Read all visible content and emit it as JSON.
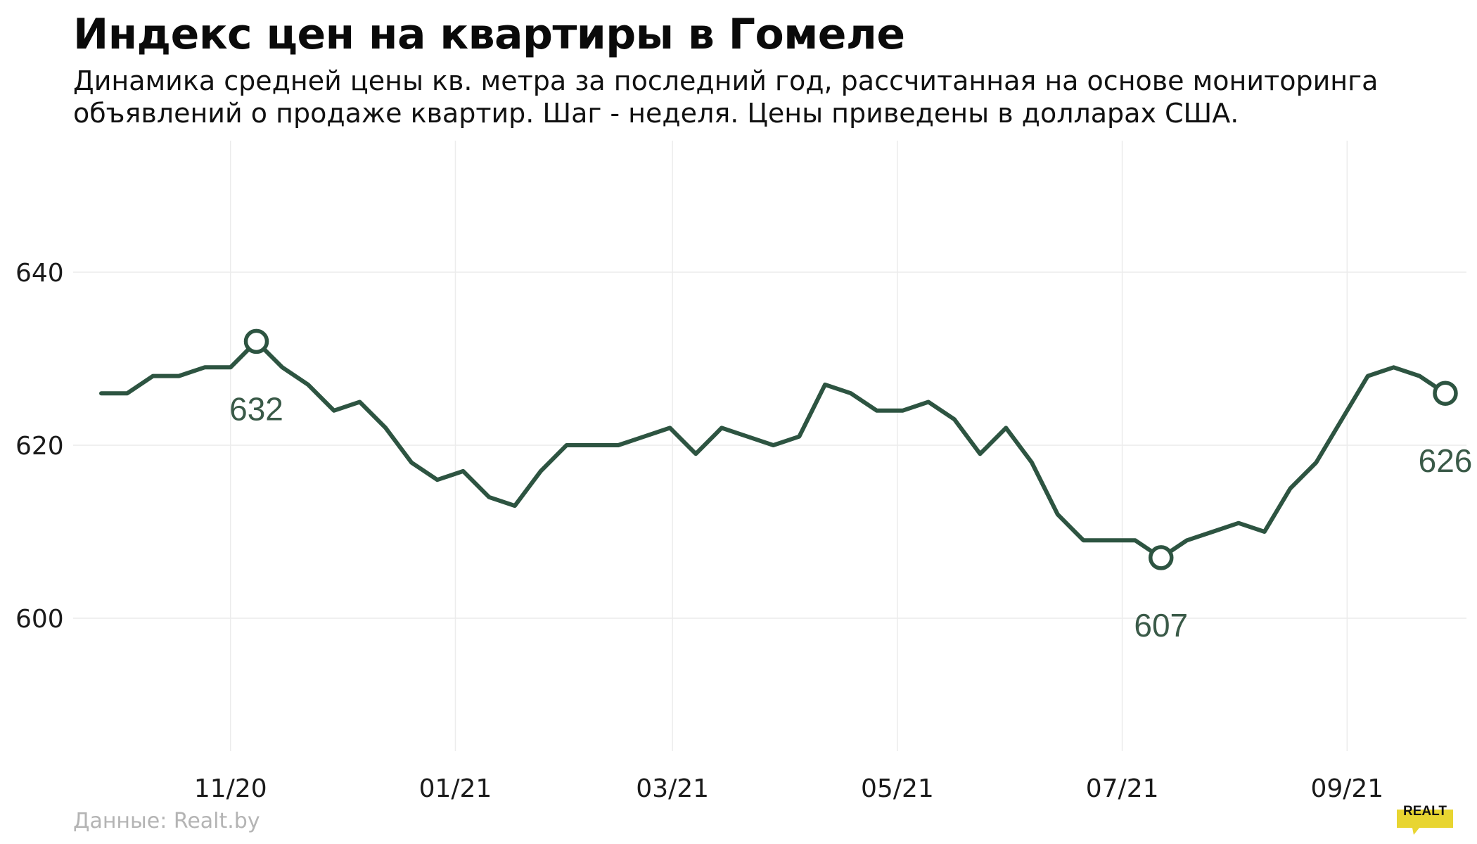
{
  "title": "Индекс цен на квартиры в Гомеле",
  "subtitle": {
    "line1": "Динамика средней цены кв. метра за последний год, рассчитанная на основе мониторинга",
    "line2": "объявлений о продаже квартир. Шаг - неделя. Цены приведены в долларах США."
  },
  "source": "Данные: Realt.by",
  "logo_text": "REALT",
  "colors": {
    "line": "#2d5441",
    "label": "#3a5a48",
    "grid": "#ececec",
    "axis_text": "#1a1a1a",
    "logo": "#e8d531"
  },
  "chart_data": {
    "type": "line",
    "title": "Индекс цен на квартиры в Гомеле",
    "xlabel": "",
    "ylabel": "",
    "ylim": [
      585,
      655
    ],
    "yticks": [
      600,
      620,
      640
    ],
    "xticks": [
      {
        "label": "11/20",
        "week": 5
      },
      {
        "label": "01/21",
        "week": 13.7
      },
      {
        "label": "03/21",
        "week": 22.1
      },
      {
        "label": "05/21",
        "week": 30.8
      },
      {
        "label": "07/21",
        "week": 39.5
      },
      {
        "label": "09/21",
        "week": 48.2
      }
    ],
    "grid": true,
    "legend": "none",
    "series": [
      {
        "values": [
          626,
          626,
          628,
          628,
          629,
          629,
          632,
          629,
          627,
          624,
          625,
          622,
          618,
          616,
          617,
          614,
          613,
          617,
          620,
          620,
          620,
          621,
          622,
          619,
          622,
          621,
          620,
          621,
          627,
          626,
          624,
          624,
          625,
          623,
          619,
          622,
          618,
          612,
          609,
          609,
          609,
          607,
          609,
          610,
          611,
          610,
          615,
          618,
          623,
          628,
          629,
          628,
          626
        ]
      }
    ],
    "annotations": [
      {
        "index": 6,
        "value": 632,
        "text": "632",
        "position": "below"
      },
      {
        "index": 41,
        "value": 607,
        "text": "607",
        "position": "below"
      },
      {
        "index": 52,
        "value": 626,
        "text": "626",
        "position": "below"
      }
    ]
  }
}
